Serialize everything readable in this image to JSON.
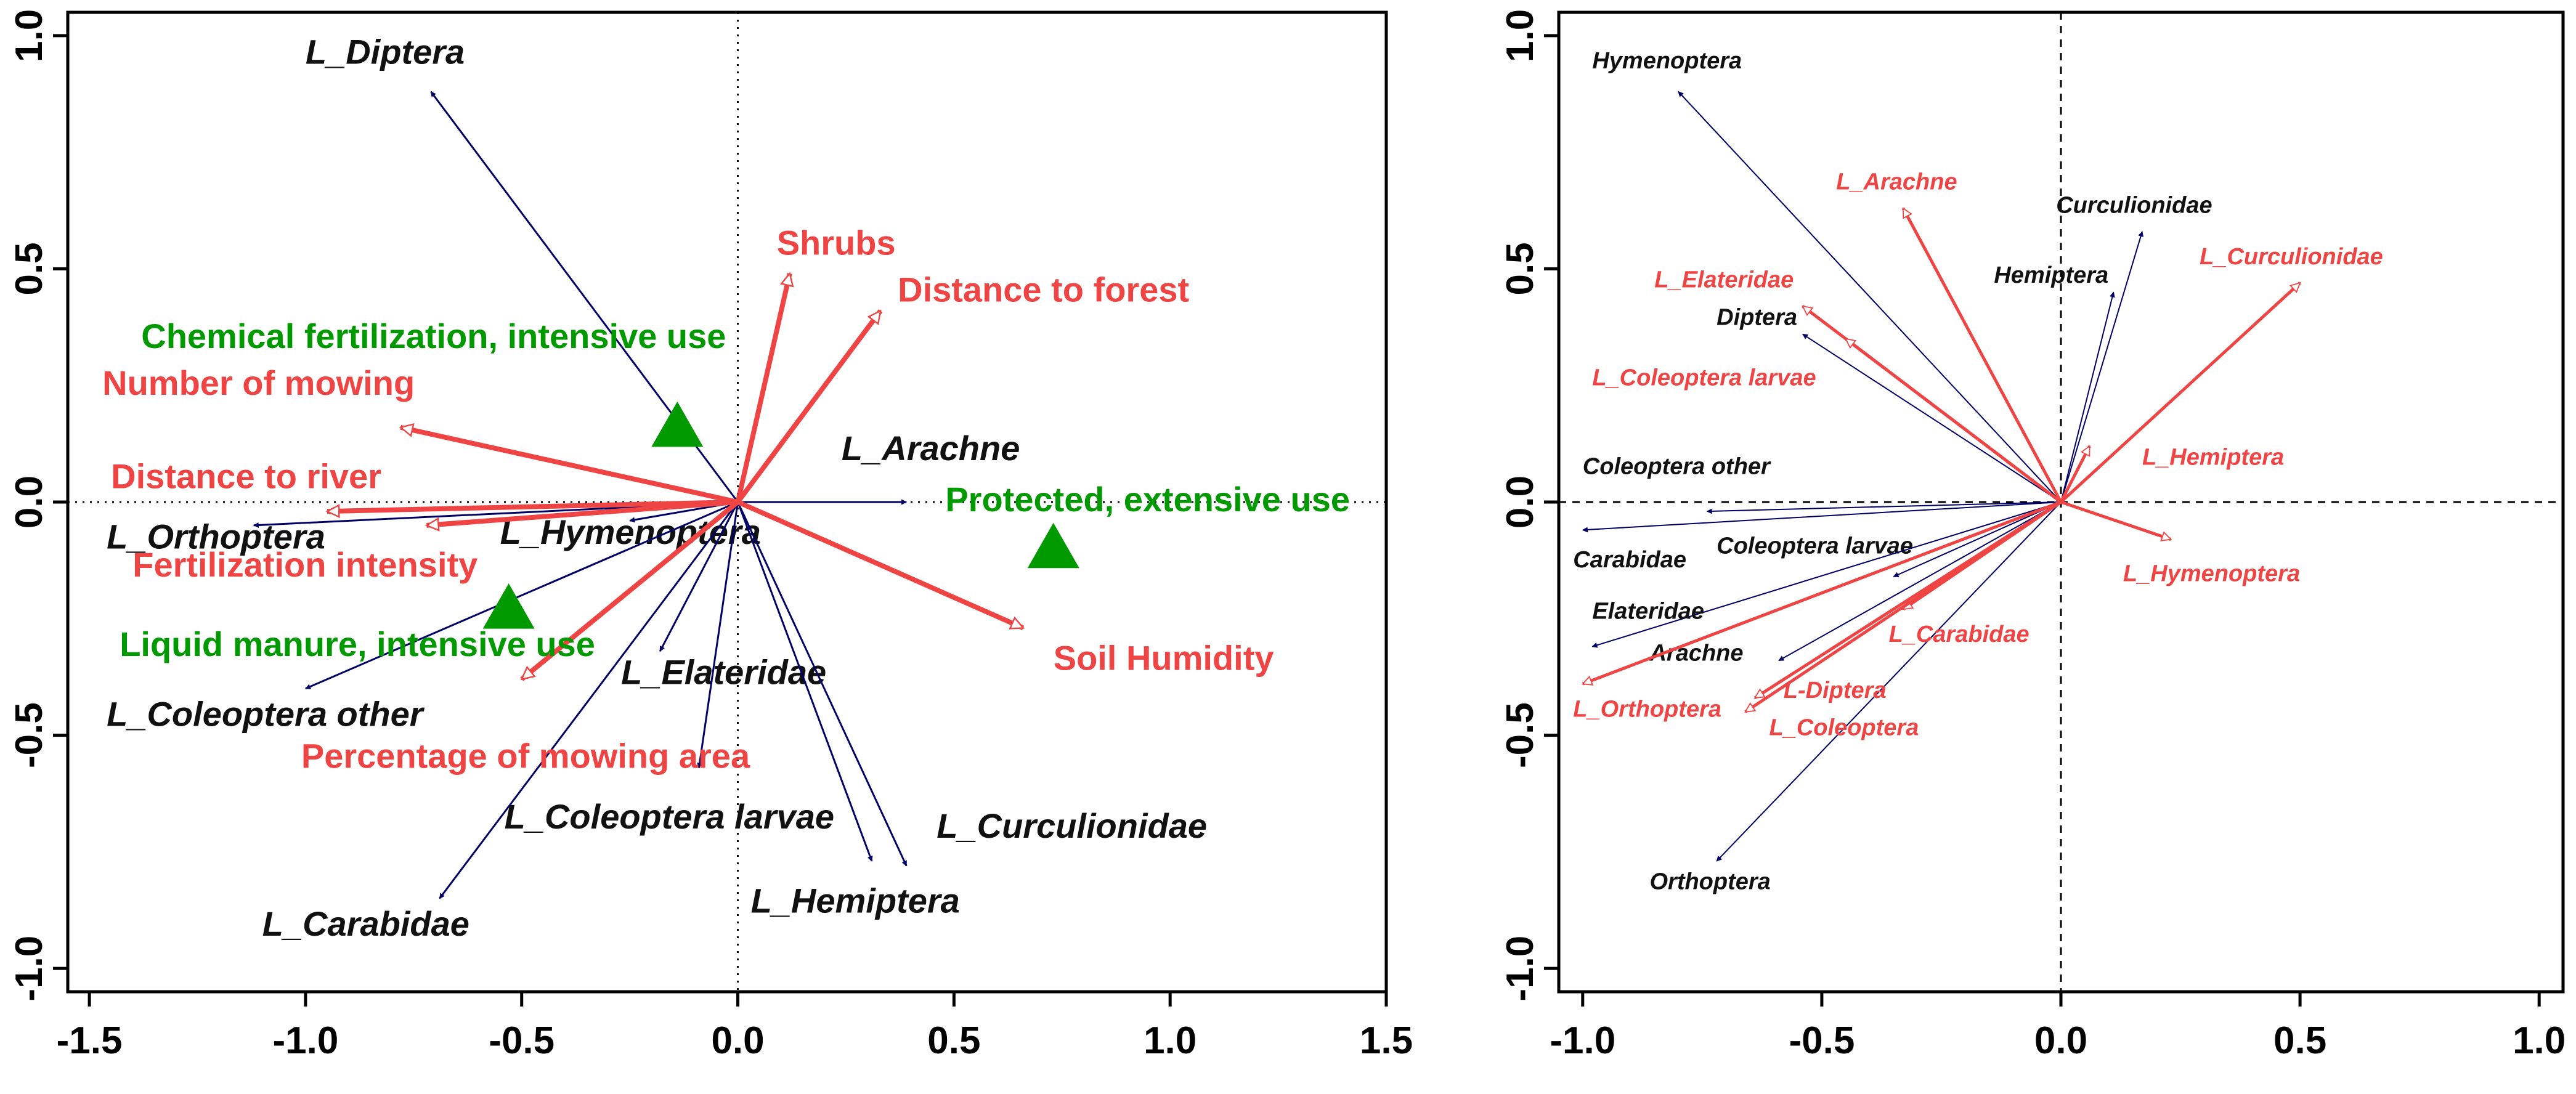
{
  "colors": {
    "species": "#000066",
    "env": "#ee4444",
    "landuse": "#009900",
    "axis": "#000000",
    "label_species": "#111111"
  },
  "chart_data": [
    {
      "type": "scatter",
      "title": "",
      "xlabel": "",
      "ylabel": "",
      "xlim": [
        -1.55,
        1.5
      ],
      "ylim": [
        -1.05,
        1.05
      ],
      "x_ticks": [
        -1.5,
        -1.0,
        -0.5,
        0.0,
        0.5,
        1.0,
        1.5
      ],
      "x_tick_labels": [
        "-1.5",
        "-1.0",
        "-0.5",
        "0.0",
        "0.5",
        "1.0",
        "1.5"
      ],
      "y_ticks": [
        -1.0,
        -0.5,
        0.0,
        0.5,
        1.0
      ],
      "y_tick_labels": [
        "-1.0",
        "-0.5",
        "0.0",
        "0.5",
        "1.0"
      ],
      "reference_lines": "dotted",
      "species_arrows": [
        {
          "name": "L_Diptera",
          "x": -0.71,
          "y": 0.88,
          "label_x": -1.0,
          "label_y": 0.94
        },
        {
          "name": "L_Arachne",
          "x": 0.39,
          "y": 0.0,
          "label_x": 0.24,
          "label_y": 0.09
        },
        {
          "name": "L_Orthoptera",
          "x": -1.12,
          "y": -0.05,
          "label_x": -1.46,
          "label_y": -0.1
        },
        {
          "name": "L_Hymenoptera",
          "x": -0.25,
          "y": -0.04,
          "label_x": -0.55,
          "label_y": -0.09
        },
        {
          "name": "L_Elateridae",
          "x": -0.18,
          "y": -0.32,
          "label_x": -0.27,
          "label_y": -0.39
        },
        {
          "name": "L_Coleoptera other",
          "x": -1.0,
          "y": -0.4,
          "label_x": -1.46,
          "label_y": -0.48
        },
        {
          "name": "L_Coleoptera larvae",
          "x": -0.09,
          "y": -0.57,
          "label_x": -0.54,
          "label_y": -0.7
        },
        {
          "name": "L_Curculionidae",
          "x": 0.39,
          "y": -0.78,
          "label_x": 0.46,
          "label_y": -0.72
        },
        {
          "name": "L_Hemiptera",
          "x": 0.31,
          "y": -0.77,
          "label_x": 0.03,
          "label_y": -0.88
        },
        {
          "name": "L_Carabidae",
          "x": -0.69,
          "y": -0.85,
          "label_x": -1.1,
          "label_y": -0.93
        }
      ],
      "env_arrows": [
        {
          "name": "Shrubs",
          "x": 0.12,
          "y": 0.49,
          "label_x": 0.09,
          "label_y": 0.53
        },
        {
          "name": "Distance to forest",
          "x": 0.33,
          "y": 0.41,
          "label_x": 0.37,
          "label_y": 0.43
        },
        {
          "name": "Number of mowing",
          "x": -0.78,
          "y": 0.16,
          "label_x": -1.47,
          "label_y": 0.23
        },
        {
          "name": "Distance to river",
          "x": -0.95,
          "y": -0.02,
          "label_x": -1.45,
          "label_y": 0.03
        },
        {
          "name": "Fertilization intensity",
          "x": -0.72,
          "y": -0.05,
          "label_x": -1.4,
          "label_y": -0.16
        },
        {
          "name": "Soil Humidity",
          "x": 0.66,
          "y": -0.27,
          "label_x": 0.73,
          "label_y": -0.36
        },
        {
          "name": "Percentage of mowing area",
          "x": -0.5,
          "y": -0.38,
          "label_x": -1.01,
          "label_y": -0.57
        }
      ],
      "landuse_points": [
        {
          "name": "Chemical fertilization, intensive use",
          "x": -0.14,
          "y": 0.16,
          "label_x": -1.38,
          "label_y": 0.33
        },
        {
          "name": "Protected, extensive use",
          "x": 0.73,
          "y": -0.1,
          "label_x": 0.48,
          "label_y": -0.02
        },
        {
          "name": "Liquid manure, intensive use",
          "x": -0.53,
          "y": -0.23,
          "label_x": -1.43,
          "label_y": -0.33
        }
      ]
    },
    {
      "type": "scatter",
      "title": "",
      "xlabel": "",
      "ylabel": "",
      "xlim": [
        -1.05,
        1.05
      ],
      "ylim": [
        -1.05,
        1.05
      ],
      "x_ticks": [
        -1.0,
        -0.5,
        0.0,
        0.5,
        1.0
      ],
      "x_tick_labels": [
        "-1.0",
        "-0.5",
        "0.0",
        "0.5",
        "1.0"
      ],
      "y_ticks": [
        -1.0,
        -0.5,
        0.0,
        0.5,
        1.0
      ],
      "y_tick_labels": [
        "-1.0",
        "-0.5",
        "0.0",
        "0.5",
        "1.0"
      ],
      "reference_lines": "dashed",
      "species_arrows": [
        {
          "name": "Hymenoptera",
          "x": -0.8,
          "y": 0.88,
          "label_x": -0.98,
          "label_y": 0.93
        },
        {
          "name": "Curculionidae",
          "x": 0.17,
          "y": 0.58,
          "label_x": -0.01,
          "label_y": 0.62
        },
        {
          "name": "Hemiptera",
          "x": 0.11,
          "y": 0.45,
          "label_x": -0.14,
          "label_y": 0.47
        },
        {
          "name": "Diptera",
          "x": -0.54,
          "y": 0.36,
          "label_x": -0.72,
          "label_y": 0.38
        },
        {
          "name": "Coleoptera other",
          "x": -0.74,
          "y": -0.02,
          "label_x": -1.0,
          "label_y": 0.06
        },
        {
          "name": "Carabidae",
          "x": -1.0,
          "y": -0.06,
          "label_x": -1.02,
          "label_y": -0.14
        },
        {
          "name": "Coleoptera larvae",
          "x": -0.35,
          "y": -0.16,
          "label_x": -0.72,
          "label_y": -0.11
        },
        {
          "name": "Elateridae",
          "x": -0.98,
          "y": -0.31,
          "label_x": -0.98,
          "label_y": -0.25
        },
        {
          "name": "Arachne",
          "x": -0.59,
          "y": -0.34,
          "label_x": -0.86,
          "label_y": -0.34
        },
        {
          "name": "Orthoptera",
          "x": -0.72,
          "y": -0.77,
          "label_x": -0.86,
          "label_y": -0.83
        }
      ],
      "env_arrows": [
        {
          "name": "L_Arachne",
          "x": -0.33,
          "y": 0.63,
          "label_x": -0.47,
          "label_y": 0.67
        },
        {
          "name": "L_Curculionidae",
          "x": 0.5,
          "y": 0.47,
          "label_x": 0.29,
          "label_y": 0.51
        },
        {
          "name": "L_Elateridae",
          "x": -0.54,
          "y": 0.42,
          "label_x": -0.85,
          "label_y": 0.46
        },
        {
          "name": "L_Coleoptera larvae",
          "x": -0.45,
          "y": 0.35,
          "label_x": -0.98,
          "label_y": 0.25
        },
        {
          "name": "L_Hemiptera",
          "x": 0.06,
          "y": 0.12,
          "label_x": 0.17,
          "label_y": 0.08
        },
        {
          "name": "L_Hymenoptera",
          "x": 0.23,
          "y": -0.08,
          "label_x": 0.13,
          "label_y": -0.17
        },
        {
          "name": "L_Carabidae",
          "x": -0.33,
          "y": -0.23,
          "label_x": -0.36,
          "label_y": -0.3
        },
        {
          "name": "L_Orthoptera",
          "x": -1.0,
          "y": -0.39,
          "label_x": -1.02,
          "label_y": -0.46
        },
        {
          "name": "L-Diptera",
          "x": -0.64,
          "y": -0.42,
          "label_x": -0.58,
          "label_y": -0.42
        },
        {
          "name": "L_Coleoptera",
          "x": -0.66,
          "y": -0.45,
          "label_x": -0.61,
          "label_y": -0.5
        }
      ],
      "landuse_points": []
    }
  ]
}
